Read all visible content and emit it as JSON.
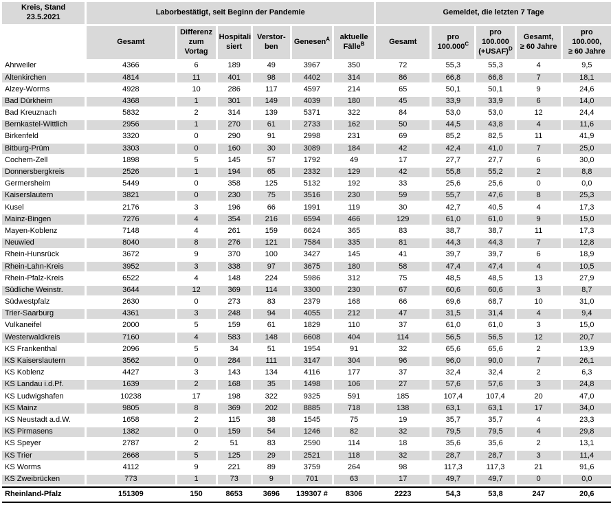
{
  "table": {
    "corner_header": "Kreis, Stand\n23.5.2021",
    "group_headers": {
      "pandemic": "Laborbestätigt, seit Beginn der Pandemie",
      "last7": "Gemeldet, die letzten 7 Tage"
    },
    "columns": [
      {
        "label": "Gesamt",
        "sup": ""
      },
      {
        "label": "Differenz\nzum\nVortag",
        "sup": ""
      },
      {
        "label": "Hospitali-\nsiert",
        "sup": ""
      },
      {
        "label": "Verstor-\nben",
        "sup": ""
      },
      {
        "label": "Genesen",
        "sup": "A"
      },
      {
        "label": "aktuelle\nFälle",
        "sup": "B"
      },
      {
        "label": "Gesamt",
        "sup": ""
      },
      {
        "label": "pro\n100.000",
        "sup": "C"
      },
      {
        "label": "pro\n100.000\n(+USAF)",
        "sup": "D"
      },
      {
        "label": "Gesamt,\n≥ 60 Jahre",
        "sup": ""
      },
      {
        "label": "pro\n100.000,\n≥ 60 Jahre",
        "sup": ""
      }
    ],
    "column_keys": [
      "name",
      "gesamt",
      "differenz_vortag",
      "hospitalisiert",
      "verstorben",
      "genesen",
      "aktuelle_faelle",
      "gesamt_7tage",
      "pro_100000",
      "pro_100000_usaf",
      "gesamt_ab60",
      "pro_100000_ab60"
    ],
    "rows": [
      [
        "Ahrweiler",
        "4366",
        "6",
        "189",
        "49",
        "3967",
        "350",
        "72",
        "55,3",
        "55,3",
        "4",
        "9,5"
      ],
      [
        "Altenkirchen",
        "4814",
        "11",
        "401",
        "98",
        "4402",
        "314",
        "86",
        "66,8",
        "66,8",
        "7",
        "18,1"
      ],
      [
        "Alzey-Worms",
        "4928",
        "10",
        "286",
        "117",
        "4597",
        "214",
        "65",
        "50,1",
        "50,1",
        "9",
        "24,6"
      ],
      [
        "Bad Dürkheim",
        "4368",
        "1",
        "301",
        "149",
        "4039",
        "180",
        "45",
        "33,9",
        "33,9",
        "6",
        "14,0"
      ],
      [
        "Bad Kreuznach",
        "5832",
        "2",
        "314",
        "139",
        "5371",
        "322",
        "84",
        "53,0",
        "53,0",
        "12",
        "24,4"
      ],
      [
        "Bernkastel-Wittlich",
        "2956",
        "1",
        "270",
        "61",
        "2733",
        "162",
        "50",
        "44,5",
        "43,8",
        "4",
        "11,6"
      ],
      [
        "Birkenfeld",
        "3320",
        "0",
        "290",
        "91",
        "2998",
        "231",
        "69",
        "85,2",
        "82,5",
        "11",
        "41,9"
      ],
      [
        "Bitburg-Prüm",
        "3303",
        "0",
        "160",
        "30",
        "3089",
        "184",
        "42",
        "42,4",
        "41,0",
        "7",
        "25,0"
      ],
      [
        "Cochem-Zell",
        "1898",
        "5",
        "145",
        "57",
        "1792",
        "49",
        "17",
        "27,7",
        "27,7",
        "6",
        "30,0"
      ],
      [
        "Donnersbergkreis",
        "2526",
        "1",
        "194",
        "65",
        "2332",
        "129",
        "42",
        "55,8",
        "55,2",
        "2",
        "8,8"
      ],
      [
        "Germersheim",
        "5449",
        "0",
        "358",
        "125",
        "5132",
        "192",
        "33",
        "25,6",
        "25,6",
        "0",
        "0,0"
      ],
      [
        "Kaiserslautern",
        "3821",
        "0",
        "230",
        "75",
        "3516",
        "230",
        "59",
        "55,7",
        "47,6",
        "8",
        "25,3"
      ],
      [
        "Kusel",
        "2176",
        "3",
        "196",
        "66",
        "1991",
        "119",
        "30",
        "42,7",
        "40,5",
        "4",
        "17,3"
      ],
      [
        "Mainz-Bingen",
        "7276",
        "4",
        "354",
        "216",
        "6594",
        "466",
        "129",
        "61,0",
        "61,0",
        "9",
        "15,0"
      ],
      [
        "Mayen-Koblenz",
        "7148",
        "4",
        "261",
        "159",
        "6624",
        "365",
        "83",
        "38,7",
        "38,7",
        "11",
        "17,3"
      ],
      [
        "Neuwied",
        "8040",
        "8",
        "276",
        "121",
        "7584",
        "335",
        "81",
        "44,3",
        "44,3",
        "7",
        "12,8"
      ],
      [
        "Rhein-Hunsrück",
        "3672",
        "9",
        "370",
        "100",
        "3427",
        "145",
        "41",
        "39,7",
        "39,7",
        "6",
        "18,9"
      ],
      [
        "Rhein-Lahn-Kreis",
        "3952",
        "3",
        "338",
        "97",
        "3675",
        "180",
        "58",
        "47,4",
        "47,4",
        "4",
        "10,5"
      ],
      [
        "Rhein-Pfalz-Kreis",
        "6522",
        "4",
        "148",
        "224",
        "5986",
        "312",
        "75",
        "48,5",
        "48,5",
        "13",
        "27,9"
      ],
      [
        "Südliche Weinstr.",
        "3644",
        "12",
        "369",
        "114",
        "3300",
        "230",
        "67",
        "60,6",
        "60,6",
        "3",
        "8,7"
      ],
      [
        "Südwestpfalz",
        "2630",
        "0",
        "273",
        "83",
        "2379",
        "168",
        "66",
        "69,6",
        "68,7",
        "10",
        "31,0"
      ],
      [
        "Trier-Saarburg",
        "4361",
        "3",
        "248",
        "94",
        "4055",
        "212",
        "47",
        "31,5",
        "31,4",
        "4",
        "9,4"
      ],
      [
        "Vulkaneifel",
        "2000",
        "5",
        "159",
        "61",
        "1829",
        "110",
        "37",
        "61,0",
        "61,0",
        "3",
        "15,0"
      ],
      [
        "Westerwaldkreis",
        "7160",
        "4",
        "583",
        "148",
        "6608",
        "404",
        "114",
        "56,5",
        "56,5",
        "12",
        "20,7"
      ],
      [
        "KS Frankenthal",
        "2096",
        "5",
        "34",
        "51",
        "1954",
        "91",
        "32",
        "65,6",
        "65,6",
        "2",
        "13,9"
      ],
      [
        "KS Kaiserslautern",
        "3562",
        "0",
        "284",
        "111",
        "3147",
        "304",
        "96",
        "96,0",
        "90,0",
        "7",
        "26,1"
      ],
      [
        "KS Koblenz",
        "4427",
        "3",
        "143",
        "134",
        "4116",
        "177",
        "37",
        "32,4",
        "32,4",
        "2",
        "6,3"
      ],
      [
        "KS Landau i.d.Pf.",
        "1639",
        "2",
        "168",
        "35",
        "1498",
        "106",
        "27",
        "57,6",
        "57,6",
        "3",
        "24,8"
      ],
      [
        "KS Ludwigshafen",
        "10238",
        "17",
        "198",
        "322",
        "9325",
        "591",
        "185",
        "107,4",
        "107,4",
        "20",
        "47,0"
      ],
      [
        "KS Mainz",
        "9805",
        "8",
        "369",
        "202",
        "8885",
        "718",
        "138",
        "63,1",
        "63,1",
        "17",
        "34,0"
      ],
      [
        "KS Neustadt a.d.W.",
        "1658",
        "2",
        "115",
        "38",
        "1545",
        "75",
        "19",
        "35,7",
        "35,7",
        "4",
        "23,3"
      ],
      [
        "KS Pirmasens",
        "1382",
        "0",
        "159",
        "54",
        "1246",
        "82",
        "32",
        "79,5",
        "79,5",
        "4",
        "29,8"
      ],
      [
        "KS Speyer",
        "2787",
        "2",
        "51",
        "83",
        "2590",
        "114",
        "18",
        "35,6",
        "35,6",
        "2",
        "13,1"
      ],
      [
        "KS Trier",
        "2668",
        "5",
        "125",
        "29",
        "2521",
        "118",
        "32",
        "28,7",
        "28,7",
        "3",
        "11,4"
      ],
      [
        "KS Worms",
        "4112",
        "9",
        "221",
        "89",
        "3759",
        "264",
        "98",
        "117,3",
        "117,3",
        "21",
        "91,6"
      ],
      [
        "KS Zweibrücken",
        "773",
        "1",
        "73",
        "9",
        "701",
        "63",
        "17",
        "49,7",
        "49,7",
        "0",
        "0,0"
      ]
    ],
    "total_row": [
      "Rheinland-Pfalz",
      "151309",
      "150",
      "8653",
      "3696",
      "139307 #",
      "8306",
      "2223",
      "54,3",
      "53,8",
      "247",
      "20,6"
    ],
    "colors": {
      "header_bg": "#d9d9d9",
      "stripe_bg": "#d9d9d9",
      "rule": "#000000"
    }
  }
}
